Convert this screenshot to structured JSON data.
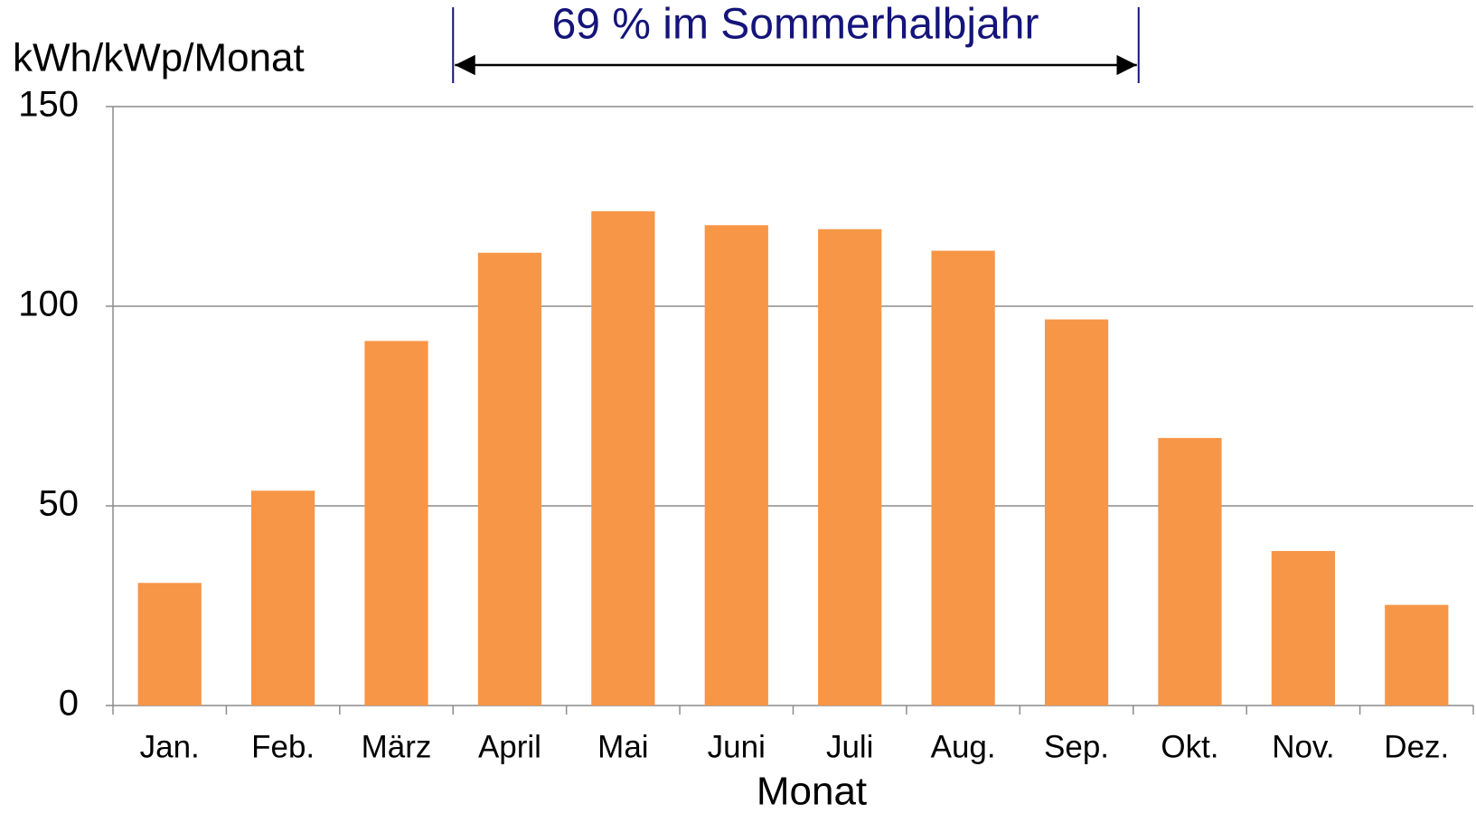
{
  "chart_data": {
    "type": "bar",
    "annotation": "69 % im Sommerhalbjahr",
    "y_label": "kWh/kWp/Monat",
    "x_label": "Monat",
    "categories": [
      "Jan.",
      "Feb.",
      "März",
      "April",
      "Mai",
      "Juni",
      "Juli",
      "Aug.",
      "Sep.",
      "Okt.",
      "Nov.",
      "Dez."
    ],
    "values": [
      30.7,
      53.8,
      91.3,
      113.4,
      123.8,
      120.3,
      119.3,
      113.9,
      96.7,
      67,
      38.7,
      25.2
    ],
    "color": "#f79646",
    "ylim": [
      0,
      150
    ],
    "yticks": [
      0,
      50,
      100,
      150
    ],
    "grid": true
  }
}
